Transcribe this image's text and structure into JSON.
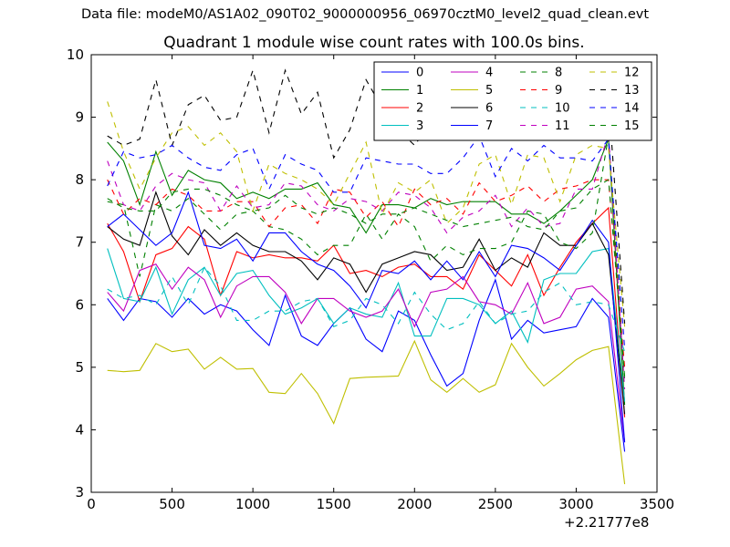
{
  "suptitle": "Data file: modeM0/AS1A02_090T02_9000000956_06970cztM0_level2_quad_clean.evt",
  "chart_data": {
    "type": "line",
    "title": "Quadrant 1 module wise count rates with 100.0s bins.",
    "xlabel": "",
    "ylabel": "",
    "x_offset_label": "+2.21777e8",
    "xlim": [
      0,
      3500
    ],
    "ylim": [
      3,
      10
    ],
    "xticks": [
      0,
      500,
      1000,
      1500,
      2000,
      2500,
      3000,
      3500
    ],
    "yticks": [
      3,
      4,
      5,
      6,
      7,
      8,
      9,
      10
    ],
    "grid": false,
    "legend_position": "top-right",
    "legend_columns": 4,
    "x": [
      100,
      200,
      300,
      400,
      500,
      600,
      700,
      800,
      900,
      1000,
      1100,
      1200,
      1300,
      1400,
      1500,
      1600,
      1700,
      1800,
      1900,
      2000,
      2100,
      2200,
      2300,
      2400,
      2500,
      2600,
      2700,
      2800,
      2900,
      3000,
      3100,
      3200,
      3300
    ],
    "series": [
      {
        "name": "0",
        "color": "#0000ff",
        "dash": "solid",
        "values": [
          6.1,
          5.75,
          6.1,
          6.05,
          5.8,
          6.1,
          5.85,
          6.0,
          5.9,
          5.6,
          5.35,
          6.15,
          5.5,
          5.35,
          5.7,
          5.95,
          5.45,
          5.25,
          5.9,
          5.75,
          5.2,
          4.7,
          4.9,
          5.75,
          6.4,
          5.45,
          5.75,
          5.55,
          5.6,
          5.65,
          6.1,
          5.8,
          3.65
        ]
      },
      {
        "name": "1",
        "color": "#008000",
        "dash": "solid",
        "values": [
          8.6,
          8.3,
          7.6,
          8.45,
          7.75,
          8.15,
          8.0,
          7.95,
          7.7,
          7.8,
          7.7,
          7.85,
          7.85,
          7.95,
          7.6,
          7.55,
          7.15,
          7.6,
          7.6,
          7.55,
          7.7,
          7.6,
          7.65,
          7.65,
          7.65,
          7.45,
          7.45,
          7.3,
          7.5,
          7.75,
          8.0,
          8.65,
          4.4
        ]
      },
      {
        "name": "2",
        "color": "#ff0000",
        "dash": "solid",
        "values": [
          7.3,
          6.85,
          6.05,
          6.8,
          6.9,
          7.25,
          7.05,
          6.15,
          6.85,
          6.75,
          6.8,
          6.75,
          6.75,
          6.7,
          6.95,
          6.5,
          6.55,
          6.45,
          6.6,
          6.65,
          6.45,
          6.45,
          6.25,
          6.8,
          6.55,
          6.3,
          6.8,
          6.15,
          6.6,
          7.0,
          7.3,
          7.55,
          4.2
        ]
      },
      {
        "name": "3",
        "color": "#00bfbf",
        "dash": "solid",
        "values": [
          6.9,
          6.1,
          6.05,
          6.6,
          5.85,
          6.4,
          6.6,
          6.15,
          6.5,
          6.55,
          6.15,
          5.85,
          5.95,
          6.1,
          5.7,
          5.95,
          5.85,
          5.8,
          6.35,
          5.5,
          5.5,
          6.1,
          6.1,
          6.0,
          5.7,
          5.9,
          5.4,
          6.4,
          6.5,
          6.5,
          6.85,
          6.9,
          4.45
        ]
      },
      {
        "name": "4",
        "color": "#bf00bf",
        "dash": "solid",
        "values": [
          6.2,
          5.9,
          6.55,
          6.65,
          6.25,
          6.6,
          6.4,
          5.8,
          6.3,
          6.45,
          6.45,
          6.2,
          5.7,
          6.1,
          6.1,
          5.9,
          5.8,
          5.9,
          6.25,
          5.65,
          6.2,
          6.25,
          6.45,
          6.05,
          6.0,
          5.85,
          6.35,
          5.7,
          5.8,
          6.25,
          6.3,
          6.05,
          3.8
        ]
      },
      {
        "name": "5",
        "color": "#bfbf00",
        "dash": "solid",
        "values": [
          4.95,
          4.93,
          4.95,
          5.38,
          5.25,
          5.29,
          4.97,
          5.16,
          4.97,
          4.98,
          4.6,
          4.58,
          4.9,
          4.58,
          4.1,
          4.82,
          4.84,
          4.85,
          4.86,
          5.42,
          4.8,
          4.6,
          4.82,
          4.6,
          4.72,
          5.38,
          5.0,
          4.7,
          4.9,
          5.12,
          5.27,
          5.33,
          3.13
        ]
      },
      {
        "name": "6",
        "color": "#000000",
        "dash": "solid",
        "values": [
          7.25,
          7.05,
          6.95,
          7.8,
          7.1,
          6.8,
          7.2,
          6.95,
          7.15,
          6.95,
          6.85,
          6.85,
          6.7,
          6.4,
          6.75,
          6.65,
          6.2,
          6.65,
          6.75,
          6.85,
          6.8,
          6.55,
          6.6,
          7.05,
          6.55,
          6.75,
          6.6,
          7.15,
          6.95,
          6.95,
          7.3,
          6.8,
          4.25
        ]
      },
      {
        "name": "7",
        "color": "#0000ff",
        "dash": "solid",
        "values": [
          7.25,
          7.45,
          7.2,
          6.95,
          7.15,
          7.8,
          6.95,
          6.9,
          7.05,
          6.7,
          7.15,
          7.15,
          6.85,
          6.65,
          6.55,
          6.3,
          5.95,
          6.55,
          6.5,
          6.7,
          6.4,
          6.7,
          6.4,
          6.85,
          6.45,
          6.95,
          6.9,
          6.75,
          6.55,
          6.95,
          7.35,
          7.0,
          3.8
        ]
      },
      {
        "name": "8",
        "color": "#008000",
        "dash": "dashed",
        "values": [
          7.65,
          7.6,
          6.45,
          7.6,
          7.5,
          7.7,
          7.45,
          7.2,
          7.45,
          7.5,
          7.25,
          7.2,
          7.05,
          6.8,
          6.95,
          6.95,
          7.45,
          7.05,
          7.45,
          7.25,
          6.7,
          6.95,
          6.8,
          6.9,
          6.9,
          7.0,
          7.5,
          7.45,
          7.0,
          6.9,
          7.15,
          8.7,
          4.8
        ]
      },
      {
        "name": "9",
        "color": "#ff0000",
        "dash": "dashed",
        "values": [
          8.0,
          7.45,
          7.7,
          7.6,
          7.85,
          7.75,
          7.5,
          7.5,
          7.65,
          7.65,
          7.25,
          7.55,
          7.6,
          7.3,
          7.85,
          7.8,
          7.4,
          7.65,
          7.25,
          7.85,
          7.6,
          7.7,
          7.45,
          7.95,
          7.65,
          7.75,
          7.9,
          7.65,
          7.85,
          7.9,
          8.0,
          8.0,
          5.0
        ]
      },
      {
        "name": "10",
        "color": "#00bfbf",
        "dash": "dashed",
        "values": [
          6.25,
          6.1,
          6.15,
          6.0,
          6.45,
          6.0,
          6.6,
          6.3,
          5.75,
          5.75,
          5.9,
          5.9,
          6.05,
          6.1,
          5.65,
          5.75,
          6.1,
          6.0,
          5.7,
          6.2,
          5.85,
          5.6,
          5.7,
          6.05,
          5.7,
          5.85,
          5.9,
          6.2,
          6.35,
          6.0,
          6.05,
          6.0,
          5.25
        ]
      },
      {
        "name": "11",
        "color": "#bf00bf",
        "dash": "dashed",
        "values": [
          8.3,
          7.6,
          7.5,
          7.9,
          8.1,
          8.0,
          7.95,
          7.5,
          7.9,
          7.55,
          7.6,
          7.95,
          7.9,
          7.6,
          7.5,
          7.7,
          7.65,
          7.5,
          7.8,
          7.75,
          7.55,
          7.15,
          7.4,
          7.5,
          7.75,
          7.25,
          7.55,
          7.25,
          7.3,
          7.85,
          7.85,
          8.75,
          4.65
        ]
      },
      {
        "name": "12",
        "color": "#bfbf00",
        "dash": "dashed",
        "values": [
          9.25,
          8.45,
          7.85,
          8.35,
          8.75,
          8.85,
          8.55,
          8.75,
          8.45,
          7.5,
          8.25,
          8.1,
          8.0,
          7.85,
          7.6,
          8.1,
          8.6,
          7.45,
          7.95,
          7.8,
          8.0,
          7.3,
          7.55,
          8.25,
          8.4,
          7.6,
          8.4,
          8.35,
          7.65,
          8.4,
          8.55,
          8.5,
          5.65
        ]
      },
      {
        "name": "13",
        "color": "#000000",
        "dash": "dashed",
        "values": [
          8.7,
          8.55,
          8.65,
          9.6,
          8.55,
          9.2,
          9.35,
          8.95,
          9.0,
          9.75,
          8.75,
          9.75,
          9.05,
          9.4,
          8.35,
          8.8,
          9.6,
          9.15,
          8.8,
          8.55,
          8.9,
          9.1,
          9.2,
          9.0,
          9.3,
          9.35,
          9.25,
          8.9,
          9.15,
          9.2,
          9.6,
          9.3,
          5.7
        ]
      },
      {
        "name": "14",
        "color": "#0000ff",
        "dash": "dashed",
        "values": [
          7.9,
          8.45,
          8.35,
          8.4,
          8.55,
          8.35,
          8.2,
          8.15,
          8.4,
          8.5,
          7.85,
          8.4,
          8.25,
          8.15,
          7.8,
          7.8,
          8.35,
          8.3,
          8.25,
          8.25,
          8.1,
          8.1,
          8.35,
          8.7,
          8.05,
          8.5,
          8.3,
          8.55,
          8.35,
          8.35,
          8.3,
          8.65,
          5.3
        ]
      },
      {
        "name": "15",
        "color": "#008000",
        "dash": "dashed",
        "values": [
          7.7,
          7.55,
          7.5,
          7.5,
          7.8,
          7.85,
          7.85,
          7.75,
          7.6,
          7.5,
          7.55,
          7.75,
          7.55,
          7.45,
          7.55,
          7.45,
          7.3,
          7.45,
          7.45,
          7.55,
          7.45,
          7.35,
          7.25,
          7.3,
          7.35,
          7.4,
          7.25,
          7.2,
          7.5,
          7.55,
          7.85,
          8.0,
          4.85
        ]
      }
    ]
  }
}
